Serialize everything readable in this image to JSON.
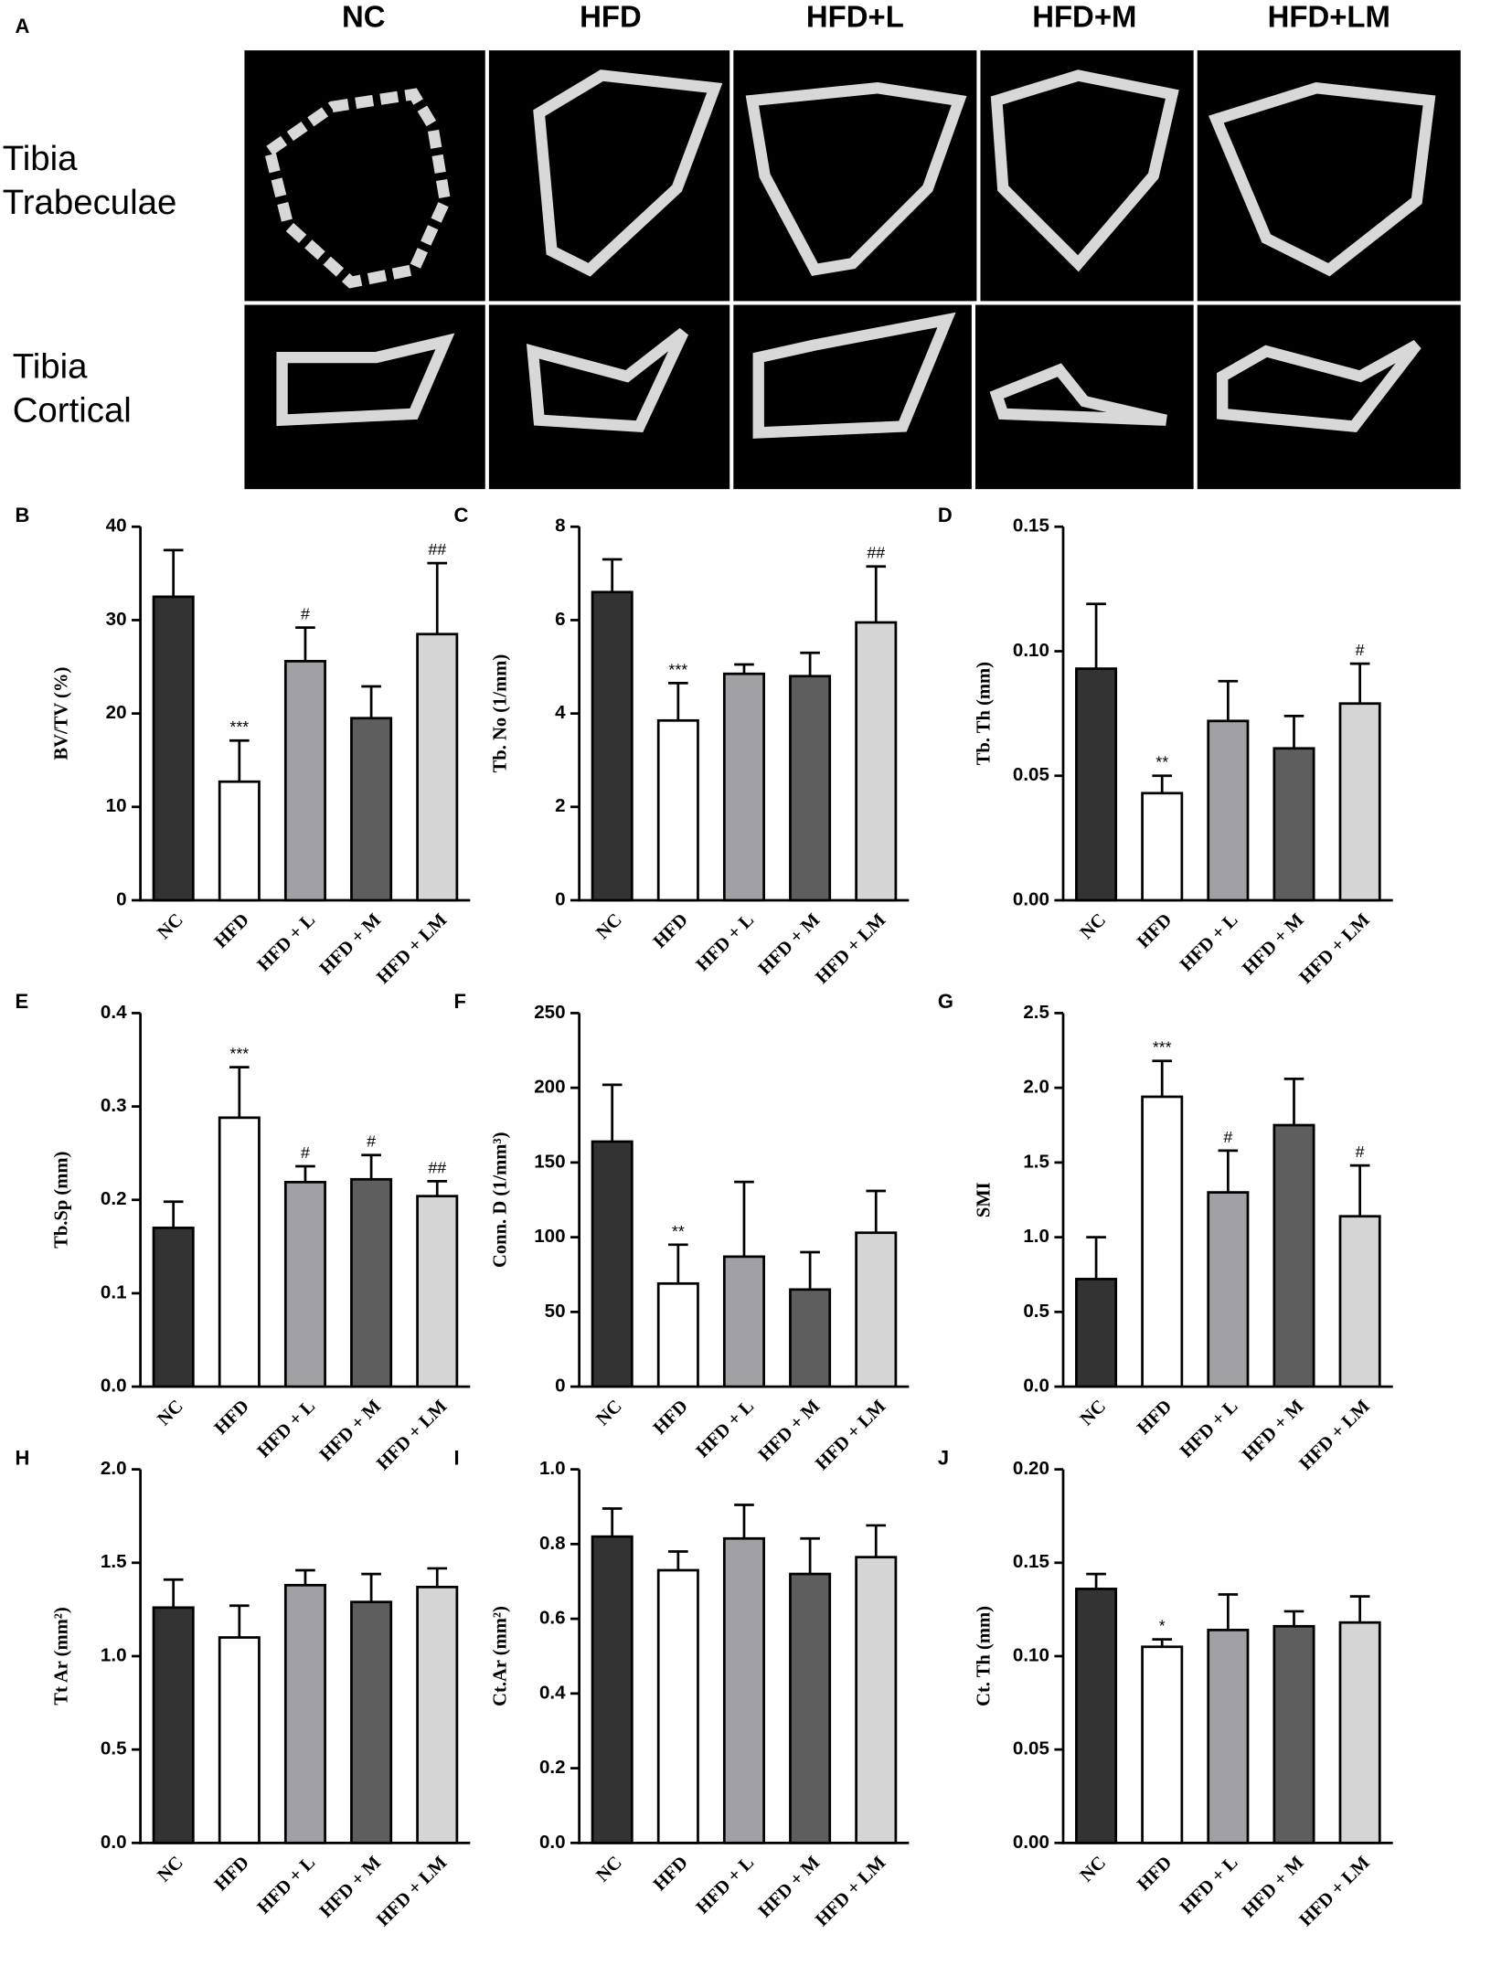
{
  "panel_a": {
    "letter": "A",
    "columns": [
      "NC",
      "HFD",
      "HFD+L",
      "HFD+M",
      "HFD+LM"
    ],
    "rows": [
      [
        "Tibia",
        "Trabeculae"
      ],
      [
        "Tibia",
        "Cortical"
      ]
    ]
  },
  "chart_data": [
    {
      "type": "bar",
      "letter": "B",
      "ylabel": "BV/TV (%)",
      "categories": [
        "NC",
        "HFD",
        "HFD + L",
        "HFD + M",
        "HFD + LM"
      ],
      "values": [
        32.5,
        12.7,
        25.6,
        19.5,
        28.5
      ],
      "errors": [
        5,
        4.4,
        3.6,
        3.4,
        7.6
      ],
      "annotations": [
        null,
        "***",
        "#",
        null,
        "##"
      ],
      "colors": [
        "#333333",
        "#ffffff",
        "#a1a1a5",
        "#5e5e5e",
        "#d5d5d5"
      ],
      "ylim": [
        0,
        40
      ],
      "yticks": [
        0,
        10,
        20,
        30,
        40
      ]
    },
    {
      "type": "bar",
      "letter": "C",
      "ylabel": "Tb. No (1/mm)",
      "categories": [
        "NC",
        "HFD",
        "HFD + L",
        "HFD + M",
        "HFD + LM"
      ],
      "values": [
        6.6,
        3.85,
        4.85,
        4.8,
        5.95
      ],
      "errors": [
        0.7,
        0.8,
        0.2,
        0.5,
        1.2
      ],
      "annotations": [
        null,
        "***",
        null,
        null,
        "##"
      ],
      "colors": [
        "#333333",
        "#ffffff",
        "#a1a1a5",
        "#5e5e5e",
        "#d5d5d5"
      ],
      "ylim": [
        0,
        8
      ],
      "yticks": [
        0,
        2,
        4,
        6,
        8
      ]
    },
    {
      "type": "bar",
      "letter": "D",
      "ylabel": "Tb. Th (mm)",
      "categories": [
        "NC",
        "HFD",
        "HFD + L",
        "HFD + M",
        "HFD + LM"
      ],
      "values": [
        0.093,
        0.043,
        0.072,
        0.061,
        0.079
      ],
      "errors": [
        0.026,
        0.007,
        0.016,
        0.013,
        0.016
      ],
      "annotations": [
        null,
        "**",
        null,
        null,
        "#"
      ],
      "colors": [
        "#333333",
        "#ffffff",
        "#a1a1a5",
        "#5e5e5e",
        "#d5d5d5"
      ],
      "ylim": [
        0,
        0.15
      ],
      "yticks": [
        {
          "value": 0,
          "label": "0.00"
        },
        {
          "value": 0.05,
          "label": "0.05"
        },
        {
          "value": 0.1,
          "label": "0.10"
        },
        {
          "value": 0.15,
          "label": "0.15"
        }
      ]
    },
    {
      "type": "bar",
      "letter": "E",
      "ylabel": "Tb.Sp (mm)",
      "categories": [
        "NC",
        "HFD",
        "HFD + L",
        "HFD + M",
        "HFD + LM"
      ],
      "values": [
        0.17,
        0.288,
        0.219,
        0.222,
        0.204
      ],
      "errors": [
        0.028,
        0.054,
        0.017,
        0.026,
        0.016
      ],
      "annotations": [
        null,
        "***",
        "#",
        "#",
        "##"
      ],
      "colors": [
        "#333333",
        "#ffffff",
        "#a1a1a5",
        "#5e5e5e",
        "#d5d5d5"
      ],
      "ylim": [
        0,
        0.4
      ],
      "yticks": [
        {
          "value": 0,
          "label": "0.0"
        },
        0.1,
        0.2,
        0.3,
        0.4
      ]
    },
    {
      "type": "bar",
      "letter": "F",
      "ylabel": "Conn. D (1/mm³)",
      "categories": [
        "NC",
        "HFD",
        "HFD + L",
        "HFD + M",
        "HFD + LM"
      ],
      "values": [
        164,
        69,
        87,
        65,
        103
      ],
      "errors": [
        38,
        26,
        50,
        25,
        28
      ],
      "annotations": [
        null,
        "**",
        null,
        null,
        null
      ],
      "colors": [
        "#333333",
        "#ffffff",
        "#a1a1a5",
        "#5e5e5e",
        "#d5d5d5"
      ],
      "ylim": [
        0,
        250
      ],
      "yticks": [
        0,
        50,
        100,
        150,
        200,
        250
      ]
    },
    {
      "type": "bar",
      "letter": "G",
      "ylabel": "SMI",
      "categories": [
        "NC",
        "HFD",
        "HFD + L",
        "HFD + M",
        "HFD + LM"
      ],
      "values": [
        0.72,
        1.94,
        1.3,
        1.75,
        1.14
      ],
      "errors": [
        0.28,
        0.24,
        0.28,
        0.31,
        0.34
      ],
      "annotations": [
        null,
        "***",
        "#",
        null,
        "#"
      ],
      "colors": [
        "#333333",
        "#ffffff",
        "#a1a1a5",
        "#5e5e5e",
        "#d5d5d5"
      ],
      "ylim": [
        0,
        2.5
      ],
      "yticks": [
        {
          "value": 0,
          "label": "0.0"
        },
        0.5,
        {
          "value": 1,
          "label": "1.0"
        },
        1.5,
        {
          "value": 2,
          "label": "2.0"
        },
        2.5
      ]
    },
    {
      "type": "bar",
      "letter": "H",
      "ylabel": "Tt Ar (mm²)",
      "categories": [
        "NC",
        "HFD",
        "HFD + L",
        "HFD + M",
        "HFD + LM"
      ],
      "values": [
        1.26,
        1.1,
        1.38,
        1.29,
        1.37
      ],
      "errors": [
        0.15,
        0.17,
        0.08,
        0.15,
        0.1
      ],
      "annotations": [
        null,
        null,
        null,
        null,
        null
      ],
      "colors": [
        "#333333",
        "#ffffff",
        "#a1a1a5",
        "#5e5e5e",
        "#d5d5d5"
      ],
      "ylim": [
        0,
        2
      ],
      "yticks": [
        {
          "value": 0,
          "label": "0.0"
        },
        0.5,
        {
          "value": 1,
          "label": "1.0"
        },
        1.5,
        {
          "value": 2,
          "label": "2.0"
        }
      ]
    },
    {
      "type": "bar",
      "letter": "I",
      "ylabel": "Ct.Ar (mm²)",
      "categories": [
        "NC",
        "HFD",
        "HFD + L",
        "HFD + M",
        "HFD + LM"
      ],
      "values": [
        0.82,
        0.73,
        0.815,
        0.72,
        0.765
      ],
      "errors": [
        0.075,
        0.05,
        0.09,
        0.095,
        0.085
      ],
      "annotations": [
        null,
        null,
        null,
        null,
        null
      ],
      "colors": [
        "#333333",
        "#ffffff",
        "#a1a1a5",
        "#5e5e5e",
        "#d5d5d5"
      ],
      "ylim": [
        0,
        1
      ],
      "yticks": [
        {
          "value": 0,
          "label": "0.0"
        },
        0.2,
        0.4,
        0.6,
        0.8,
        {
          "value": 1,
          "label": "1.0"
        }
      ]
    },
    {
      "type": "bar",
      "letter": "J",
      "ylabel": "Ct. Th (mm)",
      "categories": [
        "NC",
        "HFD",
        "HFD + L",
        "HFD + M",
        "HFD + LM"
      ],
      "values": [
        0.136,
        0.105,
        0.114,
        0.116,
        0.118
      ],
      "errors": [
        0.008,
        0.004,
        0.019,
        0.008,
        0.014
      ],
      "annotations": [
        null,
        "*",
        null,
        null,
        null
      ],
      "colors": [
        "#333333",
        "#ffffff",
        "#a1a1a5",
        "#5e5e5e",
        "#d5d5d5"
      ],
      "ylim": [
        0,
        0.2
      ],
      "yticks": [
        {
          "value": 0,
          "label": "0.00"
        },
        0.05,
        {
          "value": 0.1,
          "label": "0.10"
        },
        0.15,
        {
          "value": 0.2,
          "label": "0.20"
        }
      ]
    }
  ]
}
